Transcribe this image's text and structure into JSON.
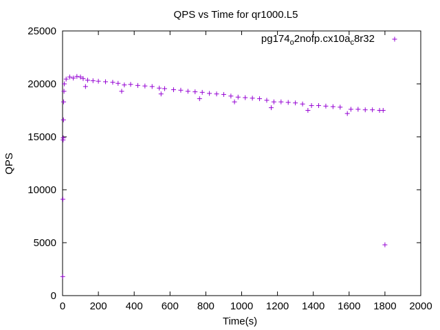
{
  "chart_data": {
    "type": "scatter",
    "title": "QPS vs Time for qr1000.L5",
    "xlabel": "Time(s)",
    "ylabel": "QPS",
    "xlim": [
      0,
      2000
    ],
    "ylim": [
      0,
      25000
    ],
    "x_ticks": [
      "0",
      "200",
      "400",
      "600",
      "800",
      "1000",
      "1200",
      "1400",
      "1600",
      "1800",
      "2000"
    ],
    "y_ticks": [
      "0",
      "5000",
      "10000",
      "15000",
      "20000",
      "25000"
    ],
    "grid": false,
    "legend_position": "top-right",
    "legend": {
      "parts": [
        {
          "text": "pg174",
          "sub": false
        },
        {
          "text": "o",
          "sub": true
        },
        {
          "text": "2nofp.cx10a",
          "sub": false
        },
        {
          "text": "c",
          "sub": true
        },
        {
          "text": "8r32",
          "sub": false
        }
      ]
    },
    "series": [
      {
        "name": "pg174_o2nofp.cx10a_c8r32",
        "color": "#9400d3",
        "marker": "plus",
        "points": [
          [
            1,
            1800
          ],
          [
            2,
            9100
          ],
          [
            3,
            14700
          ],
          [
            4,
            14900
          ],
          [
            5,
            16600
          ],
          [
            6,
            18300
          ],
          [
            8,
            19300
          ],
          [
            10,
            20000
          ],
          [
            20,
            20450
          ],
          [
            40,
            20650
          ],
          [
            60,
            20550
          ],
          [
            80,
            20700
          ],
          [
            100,
            20650
          ],
          [
            115,
            20500
          ],
          [
            128,
            19750
          ],
          [
            140,
            20350
          ],
          [
            170,
            20300
          ],
          [
            200,
            20250
          ],
          [
            240,
            20200
          ],
          [
            280,
            20150
          ],
          [
            310,
            20050
          ],
          [
            330,
            19300
          ],
          [
            345,
            19900
          ],
          [
            380,
            19950
          ],
          [
            420,
            19850
          ],
          [
            460,
            19800
          ],
          [
            500,
            19750
          ],
          [
            540,
            19600
          ],
          [
            550,
            19050
          ],
          [
            570,
            19550
          ],
          [
            620,
            19450
          ],
          [
            660,
            19400
          ],
          [
            700,
            19300
          ],
          [
            740,
            19250
          ],
          [
            765,
            18600
          ],
          [
            780,
            19200
          ],
          [
            820,
            19100
          ],
          [
            860,
            19050
          ],
          [
            900,
            19000
          ],
          [
            940,
            18850
          ],
          [
            960,
            18300
          ],
          [
            980,
            18750
          ],
          [
            1020,
            18700
          ],
          [
            1060,
            18650
          ],
          [
            1100,
            18600
          ],
          [
            1140,
            18450
          ],
          [
            1165,
            17750
          ],
          [
            1180,
            18300
          ],
          [
            1220,
            18300
          ],
          [
            1260,
            18250
          ],
          [
            1300,
            18200
          ],
          [
            1340,
            18100
          ],
          [
            1370,
            17500
          ],
          [
            1390,
            17950
          ],
          [
            1430,
            17950
          ],
          [
            1470,
            17900
          ],
          [
            1510,
            17850
          ],
          [
            1550,
            17800
          ],
          [
            1590,
            17200
          ],
          [
            1610,
            17600
          ],
          [
            1650,
            17600
          ],
          [
            1690,
            17550
          ],
          [
            1730,
            17550
          ],
          [
            1770,
            17500
          ],
          [
            1790,
            17500
          ],
          [
            1800,
            4800
          ]
        ]
      }
    ]
  }
}
